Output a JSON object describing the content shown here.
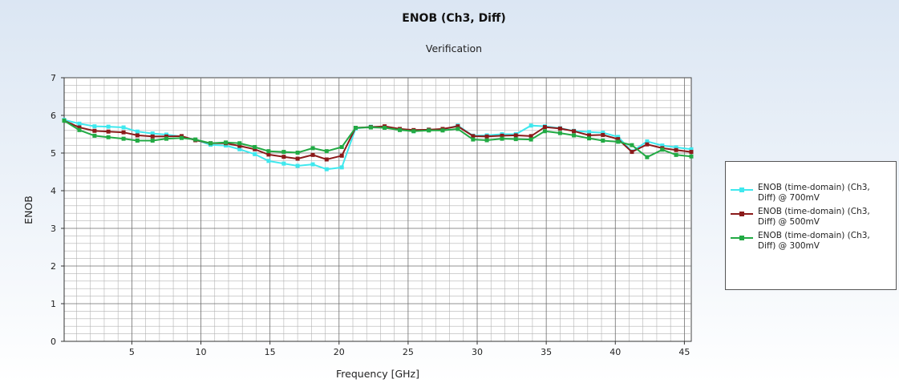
{
  "chart_data": {
    "type": "line",
    "title": "ENOB (Ch3, Diff)",
    "subtitle": "Verification",
    "xlabel": "Frequency [GHz]",
    "ylabel": "ENOB",
    "xlim": [
      0.1,
      45.5
    ],
    "ylim": [
      0,
      7
    ],
    "xticks": [
      5,
      10,
      15,
      20,
      25,
      30,
      35,
      40,
      45
    ],
    "yticks": [
      0,
      1,
      2,
      3,
      4,
      5,
      6,
      7
    ],
    "grid": true,
    "legend_position": "right",
    "x": [
      0.1,
      1.2,
      2.3,
      3.3,
      4.4,
      5.4,
      6.5,
      7.5,
      8.6,
      9.6,
      10.7,
      11.8,
      12.8,
      13.9,
      14.9,
      16.0,
      17.0,
      18.1,
      19.1,
      20.2,
      21.2,
      22.3,
      23.3,
      24.4,
      25.4,
      26.5,
      27.5,
      28.6,
      29.7,
      30.7,
      31.8,
      32.8,
      33.9,
      34.9,
      36.0,
      37.0,
      38.1,
      39.1,
      40.2,
      41.2,
      42.3,
      43.4,
      44.4,
      45.5
    ],
    "series": [
      {
        "name": "ENOB (time-domain) (Ch3, Diff) @ 700mV",
        "color": "#3fe8ee",
        "values": [
          5.88,
          5.78,
          5.71,
          5.7,
          5.68,
          5.57,
          5.52,
          5.49,
          5.44,
          5.35,
          5.22,
          5.2,
          5.1,
          4.97,
          4.79,
          4.72,
          4.66,
          4.7,
          4.57,
          4.62,
          5.65,
          5.7,
          5.69,
          5.62,
          5.58,
          5.62,
          5.62,
          5.73,
          5.46,
          5.47,
          5.5,
          5.5,
          5.73,
          5.71,
          5.66,
          5.59,
          5.56,
          5.54,
          5.43,
          5.04,
          5.31,
          5.2,
          5.15,
          5.1
        ]
      },
      {
        "name": "ENOB (time-domain) (Ch3, Diff) @ 500mV",
        "color": "#8b1a1a",
        "values": [
          5.86,
          5.68,
          5.59,
          5.57,
          5.55,
          5.47,
          5.44,
          5.44,
          5.45,
          5.34,
          5.26,
          5.26,
          5.19,
          5.1,
          4.96,
          4.9,
          4.85,
          4.95,
          4.83,
          4.93,
          5.67,
          5.69,
          5.71,
          5.64,
          5.61,
          5.62,
          5.64,
          5.71,
          5.45,
          5.44,
          5.46,
          5.47,
          5.45,
          5.69,
          5.65,
          5.58,
          5.47,
          5.48,
          5.37,
          5.03,
          5.23,
          5.13,
          5.08,
          5.03
        ]
      },
      {
        "name": "ENOB (time-domain) (Ch3, Diff) @ 300mV",
        "color": "#22aa44",
        "values": [
          5.86,
          5.61,
          5.46,
          5.42,
          5.38,
          5.33,
          5.33,
          5.38,
          5.4,
          5.36,
          5.26,
          5.28,
          5.26,
          5.16,
          5.05,
          5.03,
          5.01,
          5.13,
          5.05,
          5.16,
          5.67,
          5.68,
          5.67,
          5.61,
          5.58,
          5.6,
          5.6,
          5.64,
          5.36,
          5.34,
          5.38,
          5.37,
          5.36,
          5.58,
          5.53,
          5.47,
          5.39,
          5.33,
          5.3,
          5.21,
          4.89,
          5.09,
          4.95,
          4.91
        ]
      }
    ]
  }
}
